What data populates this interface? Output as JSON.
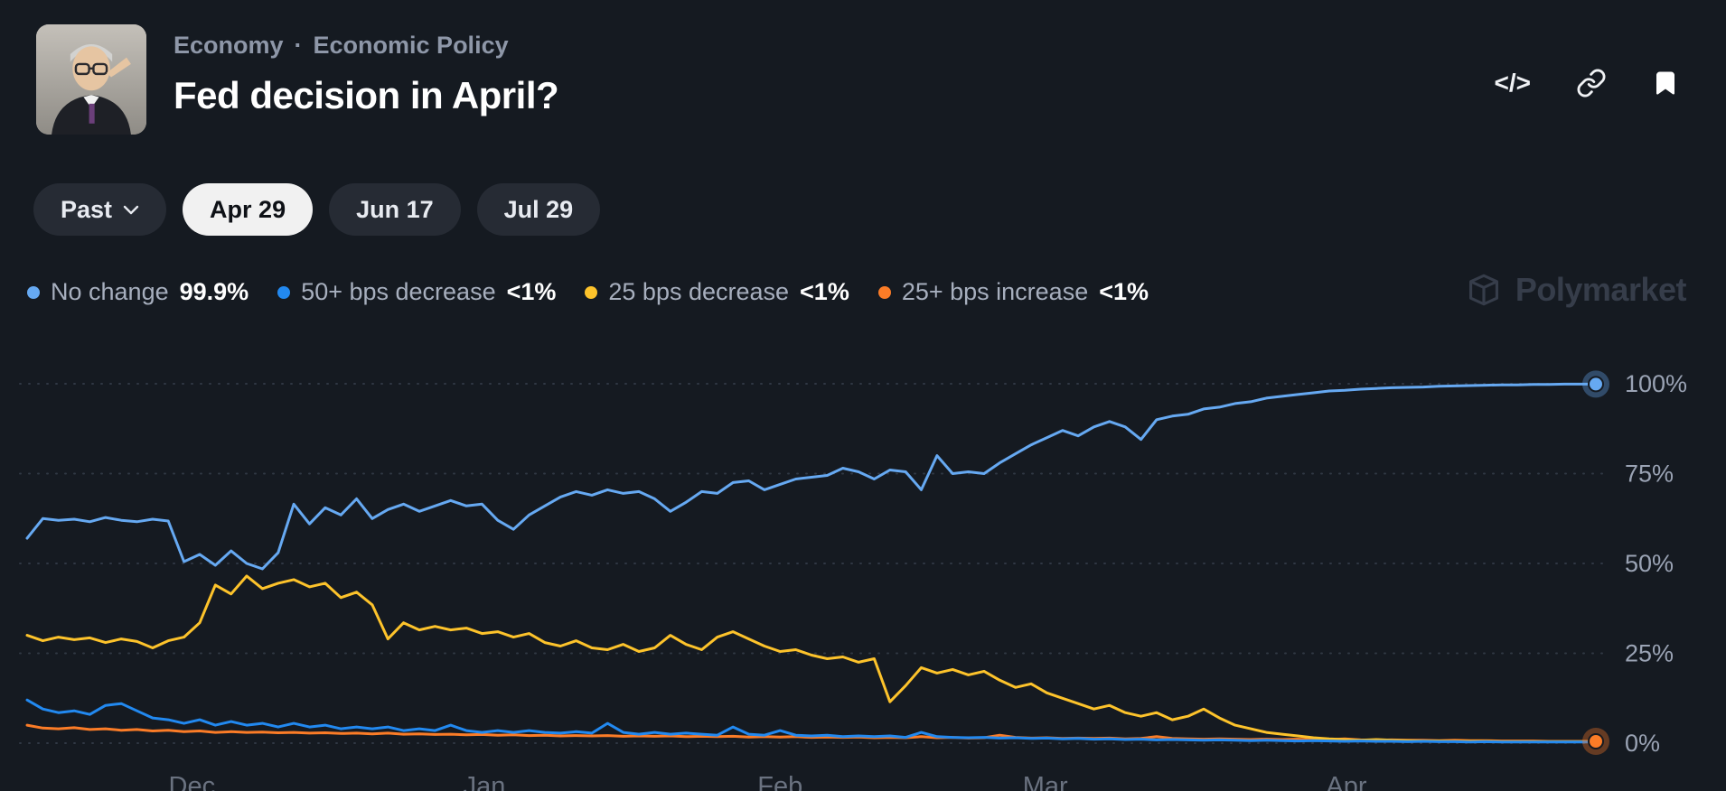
{
  "header": {
    "breadcrumb": {
      "items": [
        "Economy",
        "Economic Policy"
      ],
      "separator": "·"
    },
    "title": "Fed decision in April?",
    "actions": {
      "embed_label": "</>",
      "icons": [
        "embed-code-icon",
        "copy-link-icon",
        "bookmark-icon"
      ]
    }
  },
  "timeframe_tabs": [
    {
      "label": "Past",
      "has_dropdown": true,
      "selected": false
    },
    {
      "label": "Apr 29",
      "has_dropdown": false,
      "selected": true
    },
    {
      "label": "Jun 17",
      "has_dropdown": false,
      "selected": false
    },
    {
      "label": "Jul 29",
      "has_dropdown": false,
      "selected": false
    }
  ],
  "legend": [
    {
      "label": "No change",
      "value": "99.9%",
      "color": "#66a9f2"
    },
    {
      "label": "50+ bps decrease",
      "value": "<1%",
      "color": "#2289f0"
    },
    {
      "label": "25 bps decrease",
      "value": "<1%",
      "color": "#fdc32b"
    },
    {
      "label": "25+ bps increase",
      "value": "<1%",
      "color": "#fb7c27"
    }
  ],
  "watermark": {
    "text": "Polymarket"
  },
  "chart_data": {
    "type": "line",
    "title": "Fed decision in April?",
    "ylim": [
      0,
      100
    ],
    "grid": true,
    "legend_position": "top-left",
    "y_gridlines": [
      {
        "value": 100,
        "label": "100%"
      },
      {
        "value": 75,
        "label": "75%"
      },
      {
        "value": 50,
        "label": "50%"
      },
      {
        "value": 25,
        "label": "25%"
      },
      {
        "value": 0,
        "label": "0%"
      }
    ],
    "x_ticks": [
      {
        "label": "Dec",
        "pos": 0.105
      },
      {
        "label": "Jan",
        "pos": 0.2915
      },
      {
        "label": "Feb",
        "pos": 0.48
      },
      {
        "label": "Mar",
        "pos": 0.649
      },
      {
        "label": "Apr",
        "pos": 0.841
      }
    ],
    "series": [
      {
        "name": "No change",
        "color": "#66a9f2",
        "end_marker": true,
        "end_value": "99.9%",
        "values": [
          57,
          62.5,
          62,
          62.3,
          61.6,
          62.8,
          62,
          61.6,
          62.3,
          61.8,
          50.5,
          52.5,
          49.5,
          53.5,
          50,
          48.5,
          53,
          66.5,
          61,
          65.5,
          63.5,
          68,
          62.5,
          65,
          66.5,
          64.5,
          66,
          67.5,
          66,
          66.5,
          62,
          59.5,
          63.5,
          66,
          68.5,
          70,
          69,
          70.5,
          69.5,
          70,
          68,
          64.5,
          67,
          70,
          69.5,
          72.5,
          73,
          70.5,
          72,
          73.5,
          74,
          74.5,
          76.5,
          75.5,
          73.5,
          76,
          75.5,
          70.5,
          80,
          75,
          75.5,
          75,
          78,
          80.5,
          83,
          85,
          87,
          85.5,
          88,
          89.5,
          88,
          84.5,
          90,
          91,
          91.5,
          93,
          93.5,
          94.5,
          95,
          96,
          96.5,
          97,
          97.5,
          98,
          98.2,
          98.5,
          98.7,
          98.9,
          99,
          99.1,
          99.3,
          99.4,
          99.5,
          99.6,
          99.7,
          99.7,
          99.8,
          99.8,
          99.9,
          99.9,
          99.9
        ]
      },
      {
        "name": "50+ bps decrease",
        "color": "#2289f0",
        "end_marker": false,
        "end_value": "<1%",
        "values": [
          12,
          9.5,
          8.5,
          9,
          8,
          10.5,
          11,
          9,
          7,
          6.5,
          5.5,
          6.5,
          5,
          6,
          5,
          5.5,
          4.5,
          5.5,
          4.5,
          5,
          4,
          4.5,
          4,
          4.5,
          3.5,
          4,
          3.5,
          5,
          3.5,
          3,
          3.5,
          3,
          3.5,
          3,
          2.8,
          3.2,
          2.8,
          5.5,
          3,
          2.5,
          3,
          2.5,
          2.8,
          2.5,
          2.2,
          4.5,
          2.5,
          2.2,
          3.5,
          2.2,
          2,
          2.2,
          1.8,
          2,
          1.8,
          2,
          1.6,
          3,
          1.8,
          1.6,
          1.5,
          1.6,
          1.4,
          1.5,
          1.3,
          1.4,
          1.2,
          1.3,
          1.1,
          1.2,
          1,
          1.1,
          0.9,
          1,
          0.9,
          0.8,
          0.9,
          0.8,
          0.7,
          0.8,
          0.7,
          0.6,
          0.7,
          0.6,
          0.5,
          0.6,
          0.5,
          0.5,
          0.4,
          0.5,
          0.4,
          0.4,
          0.3,
          0.4,
          0.3,
          0.3,
          0.3,
          0.3,
          0.3,
          0.3,
          0.3
        ]
      },
      {
        "name": "25 bps decrease",
        "color": "#fdc32b",
        "end_marker": false,
        "end_value": "<1%",
        "values": [
          30,
          28.5,
          29.5,
          28.8,
          29.3,
          28,
          29,
          28.3,
          26.5,
          28.5,
          29.5,
          33.5,
          44,
          41.5,
          46.5,
          43,
          44.5,
          45.5,
          43.5,
          44.5,
          40.5,
          42,
          38.5,
          29,
          33.5,
          31.5,
          32.5,
          31.5,
          32,
          30.5,
          31,
          29.5,
          30.5,
          28,
          27,
          28.5,
          26.5,
          26,
          27.5,
          25.5,
          26.5,
          30,
          27.5,
          26,
          29.5,
          31,
          29,
          27,
          25.5,
          26,
          24.5,
          23.5,
          24,
          22.5,
          23.5,
          11.5,
          16,
          21,
          19.5,
          20.5,
          19,
          20,
          17.5,
          15.5,
          16.5,
          14,
          12.5,
          11,
          9.5,
          10.5,
          8.5,
          7.5,
          8.5,
          6.5,
          7.5,
          9.5,
          7,
          5,
          4,
          3,
          2.5,
          2,
          1.5,
          1.2,
          1,
          0.8,
          1,
          0.8,
          0.7,
          0.6,
          0.6,
          0.5,
          0.5,
          0.5,
          0.4,
          0.4,
          0.4,
          0.4,
          0.4,
          0.4,
          0.4
        ]
      },
      {
        "name": "25+ bps increase",
        "color": "#fb7c27",
        "end_marker": true,
        "end_value": "<1%",
        "values": [
          5,
          4.2,
          4,
          4.3,
          3.8,
          4,
          3.6,
          3.8,
          3.4,
          3.6,
          3.2,
          3.4,
          3,
          3.2,
          3,
          3.1,
          2.9,
          3,
          2.8,
          2.9,
          2.7,
          2.8,
          2.6,
          2.8,
          2.5,
          2.6,
          2.4,
          2.5,
          2.3,
          2.4,
          2.2,
          2.3,
          2.1,
          2.2,
          2,
          2.1,
          2,
          2.1,
          1.9,
          2,
          1.9,
          2,
          1.8,
          1.9,
          1.8,
          1.9,
          1.7,
          1.8,
          1.7,
          1.8,
          1.6,
          1.7,
          1.6,
          1.7,
          1.5,
          1.6,
          1.5,
          1.8,
          1.5,
          1.6,
          1.4,
          1.5,
          2.2,
          1.6,
          1.4,
          1.5,
          1.3,
          1.4,
          1.3,
          1.4,
          1.2,
          1.3,
          1.8,
          1.3,
          1.2,
          1.1,
          1.2,
          1.1,
          1,
          1.1,
          1,
          1.1,
          0.9,
          1,
          1.2,
          0.9,
          0.8,
          0.9,
          0.8,
          0.8,
          0.7,
          0.8,
          0.7,
          0.7,
          0.6,
          0.6,
          0.6,
          0.5,
          0.5,
          0.5,
          0.5
        ]
      }
    ]
  }
}
